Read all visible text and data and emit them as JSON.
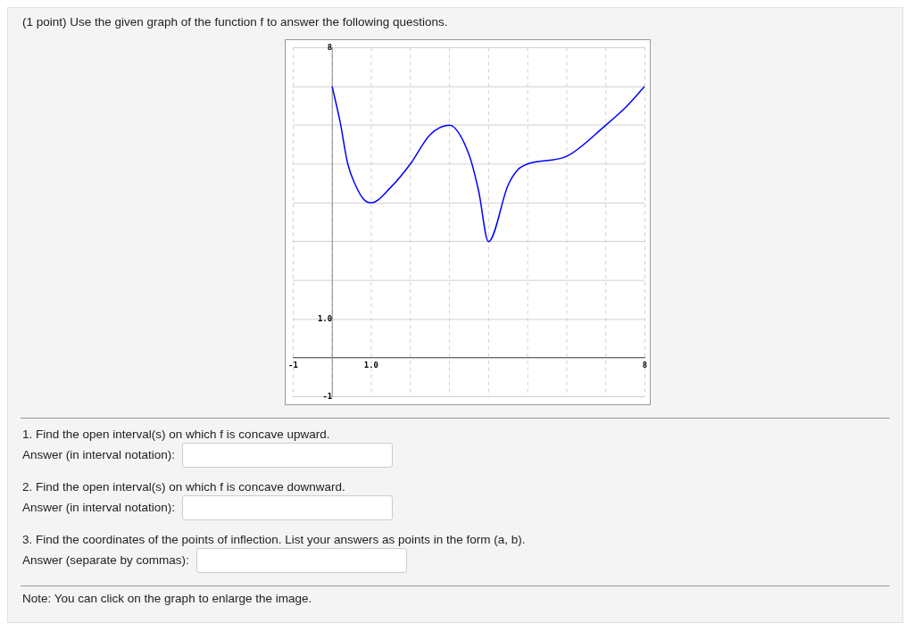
{
  "chart_data": {
    "type": "line",
    "title": "(1 point) Use the given graph of the function f to answer the following questions.",
    "x": [
      0,
      0.2,
      0.4,
      0.6,
      0.8,
      1,
      1.5,
      2,
      2.5,
      3,
      3.5,
      3.75,
      4,
      4.5,
      4.75,
      5,
      6,
      7,
      7.5,
      8
    ],
    "series": [
      {
        "color": "#0000ff",
        "values": [
          7,
          6.1,
          5,
          4.45,
          4.1,
          4,
          4.4,
          5,
          5.75,
          6,
          5.25,
          4.3,
          3,
          4.45,
          4.85,
          5,
          5.2,
          6,
          6.45,
          7
        ]
      }
    ],
    "xlim": [
      -1,
      8
    ],
    "ylim": [
      -1,
      8
    ],
    "xticks": [
      {
        "value": -1,
        "label": "-1"
      },
      {
        "value": 0,
        "label": null
      },
      {
        "value": 1,
        "label": "1.0"
      },
      {
        "value": 2,
        "label": null
      },
      {
        "value": 3,
        "label": null
      },
      {
        "value": 4,
        "label": null
      },
      {
        "value": 5,
        "label": null
      },
      {
        "value": 6,
        "label": null
      },
      {
        "value": 7,
        "label": null
      },
      {
        "value": 8,
        "label": "8"
      }
    ],
    "yticks": [
      {
        "value": -1,
        "label": "-1"
      },
      {
        "value": 0,
        "label": null
      },
      {
        "value": 1,
        "label": "1.0"
      },
      {
        "value": 2,
        "label": null
      },
      {
        "value": 3,
        "label": null
      },
      {
        "value": 4,
        "label": null
      },
      {
        "value": 5,
        "label": null
      },
      {
        "value": 6,
        "label": null
      },
      {
        "value": 7,
        "label": null
      },
      {
        "value": 8,
        "label": "8"
      }
    ],
    "grid": true,
    "marker": "none",
    "line_style": "solid",
    "legend": false,
    "annotations": [
      "1. Find the open interval(s) on which f is concave upward.",
      "Answer (in interval notation):",
      "2. Find the open interval(s) on which f is concave downward.",
      "Answer (in interval notation):",
      "3. Find the coordinates of the points of inflection. List your answers as points in the form (a, b).",
      "Answer (separate by commas):",
      "Note: You can click on the graph to enlarge the image."
    ]
  }
}
